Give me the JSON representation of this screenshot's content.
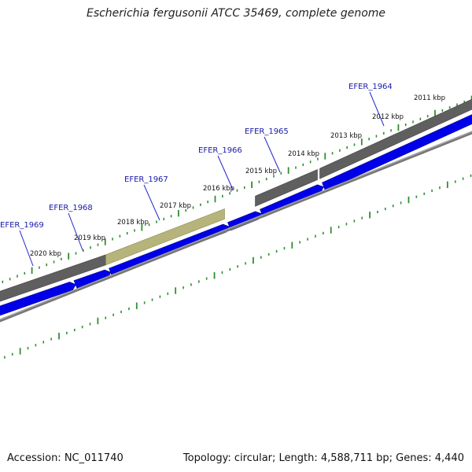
{
  "title": "Escherichia fergusonii ATCC 35469, complete genome",
  "footer": {
    "accession": "Accession: NC_011740",
    "summary": "Topology: circular; Length: 4,588,711 bp; Genes: 4,440"
  },
  "colors": {
    "forward_cds": "#0000e8",
    "reverse_gene": "#5f5f5f",
    "highlighted_gene": "#b6b47a",
    "tick": "#2f8f2f",
    "gene_label": "#1a1aa8"
  },
  "ruler": [
    {
      "label": "2011 kbp"
    },
    {
      "label": "2012 kbp"
    },
    {
      "label": "2013 kbp"
    },
    {
      "label": "2014 kbp"
    },
    {
      "label": "2015 kbp"
    },
    {
      "label": "2016 kbp"
    },
    {
      "label": "2017 kbp"
    },
    {
      "label": "2018 kbp"
    },
    {
      "label": "2019 kbp"
    },
    {
      "label": "2020 kbp"
    }
  ],
  "gene_labels": [
    {
      "name": "EFER_1964"
    },
    {
      "name": "EFER_1965"
    },
    {
      "name": "EFER_1966"
    },
    {
      "name": "EFER_1967"
    },
    {
      "name": "EFER_1968"
    },
    {
      "name": "EFER_1969"
    }
  ]
}
